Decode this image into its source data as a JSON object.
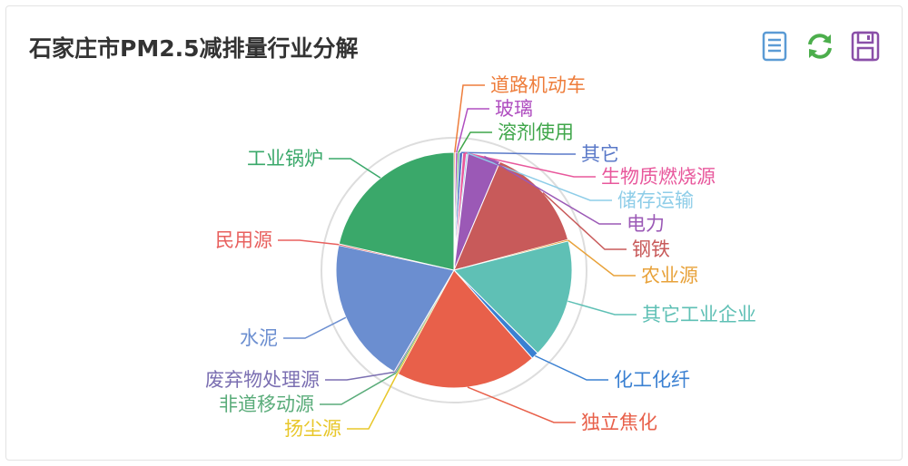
{
  "title": "石家庄市PM2.5减排量行业分解",
  "toolbox": {
    "data_view_icon": "data-view-icon",
    "refresh_icon": "refresh-icon",
    "save_icon": "save-image-icon",
    "colors": {
      "data_view": "#5b9bd5",
      "refresh": "#4cae4c",
      "save": "#8a4fa8"
    }
  },
  "chart_data": {
    "type": "pie",
    "title": "石家庄市PM2.5减排量行业分解",
    "start_angle_deg": 90,
    "clockwise": true,
    "series": [
      {
        "name": "道路机动车",
        "value": 0.2,
        "color": "#ee7d3b"
      },
      {
        "name": "玻璃",
        "value": 0.3,
        "color": "#b04fc0"
      },
      {
        "name": "溶剂使用",
        "value": 0.2,
        "color": "#3fa64a"
      },
      {
        "name": "其它",
        "value": 0.5,
        "color": "#5a79c8"
      },
      {
        "name": "生物质燃烧源",
        "value": 0.5,
        "color": "#e8589c"
      },
      {
        "name": "储存运输",
        "value": 0.2,
        "color": "#8ecde8"
      },
      {
        "name": "电力",
        "value": 4.5,
        "color": "#9b59b6"
      },
      {
        "name": "钢铁",
        "value": 14.5,
        "color": "#c85a5a"
      },
      {
        "name": "农业源",
        "value": 0.2,
        "color": "#e8a23a"
      },
      {
        "name": "其它工业企业",
        "value": 16.5,
        "color": "#5fc0b5"
      },
      {
        "name": "化工化纤",
        "value": 1.0,
        "color": "#3a80d2"
      },
      {
        "name": "独立焦化",
        "value": 19.5,
        "color": "#e8604a"
      },
      {
        "name": "扬尘源",
        "value": 0.2,
        "color": "#e8c72a"
      },
      {
        "name": "非道移动源",
        "value": 0.2,
        "color": "#5aac7a"
      },
      {
        "name": "废弃物处理源",
        "value": 0.2,
        "color": "#7b6fb2"
      },
      {
        "name": "水泥",
        "value": 20.0,
        "color": "#6b8ed0"
      },
      {
        "name": "民用源",
        "value": 0.2,
        "color": "#e8605e"
      },
      {
        "name": "工业锅炉",
        "value": 21.5,
        "color": "#3aa86a"
      }
    ]
  }
}
